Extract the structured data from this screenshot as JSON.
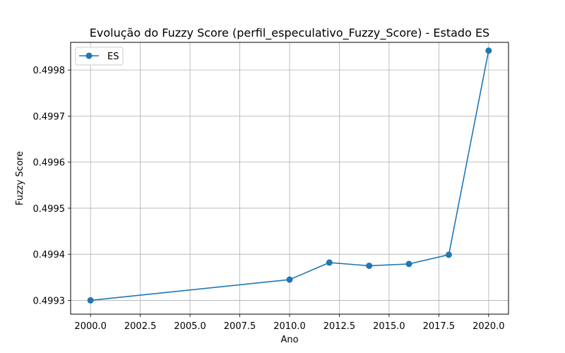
{
  "chart_data": {
    "type": "line",
    "title": "Evolução do Fuzzy Score (perfil_especulativo_Fuzzy_Score) - Estado ES",
    "xlabel": "Ano",
    "ylabel": "Fuzzy Score",
    "xlim": [
      1999.0,
      2021.0
    ],
    "ylim": [
      0.49927,
      0.49986
    ],
    "xticks": [
      2000.0,
      2002.5,
      2005.0,
      2007.5,
      2010.0,
      2012.5,
      2015.0,
      2017.5,
      2020.0
    ],
    "xtick_labels": [
      "2000.0",
      "2002.5",
      "2005.0",
      "2007.5",
      "2010.0",
      "2012.5",
      "2015.0",
      "2017.5",
      "2020.0"
    ],
    "yticks": [
      0.4993,
      0.4994,
      0.4995,
      0.4996,
      0.4997,
      0.4998
    ],
    "ytick_labels": [
      "0.4993",
      "0.4994",
      "0.4995",
      "0.4996",
      "0.4997",
      "0.4998"
    ],
    "grid": true,
    "legend_position": "top-left",
    "series": [
      {
        "name": "ES",
        "color": "#1f77b4",
        "marker": "circle",
        "x": [
          2000,
          2010,
          2012,
          2014,
          2016,
          2018,
          2020
        ],
        "y": [
          0.4993,
          0.499345,
          0.499382,
          0.499375,
          0.499379,
          0.499399,
          0.499842
        ]
      }
    ]
  }
}
